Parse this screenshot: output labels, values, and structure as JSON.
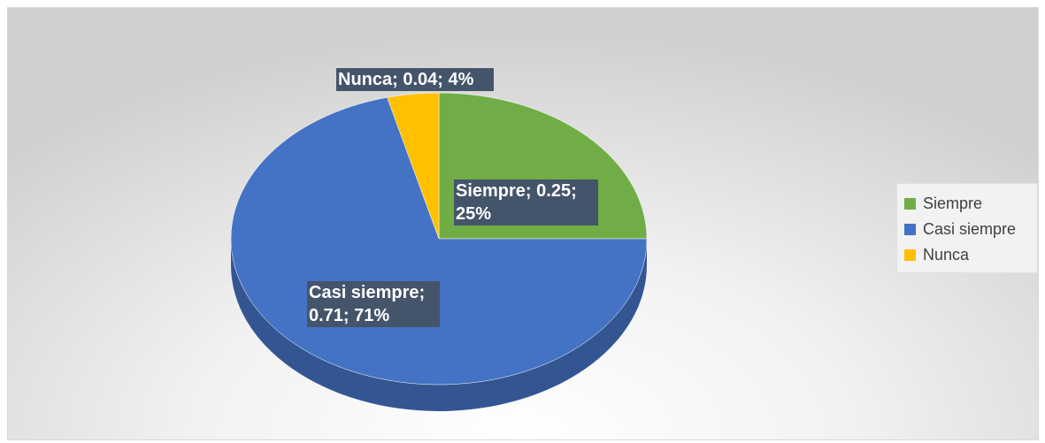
{
  "chart_data": {
    "type": "pie3d",
    "categories": [
      "Siempre",
      "Casi siempre",
      "Nunca"
    ],
    "values": [
      0.25,
      0.71,
      0.04
    ],
    "value_labels": [
      "Siempre; 0.25; 25%",
      "Casi siempre; 0.71; 71%",
      "Nunca; 0.04; 4%"
    ],
    "colors": [
      "#70ad47",
      "#4472c4",
      "#ffc000"
    ],
    "legend": "right"
  }
}
